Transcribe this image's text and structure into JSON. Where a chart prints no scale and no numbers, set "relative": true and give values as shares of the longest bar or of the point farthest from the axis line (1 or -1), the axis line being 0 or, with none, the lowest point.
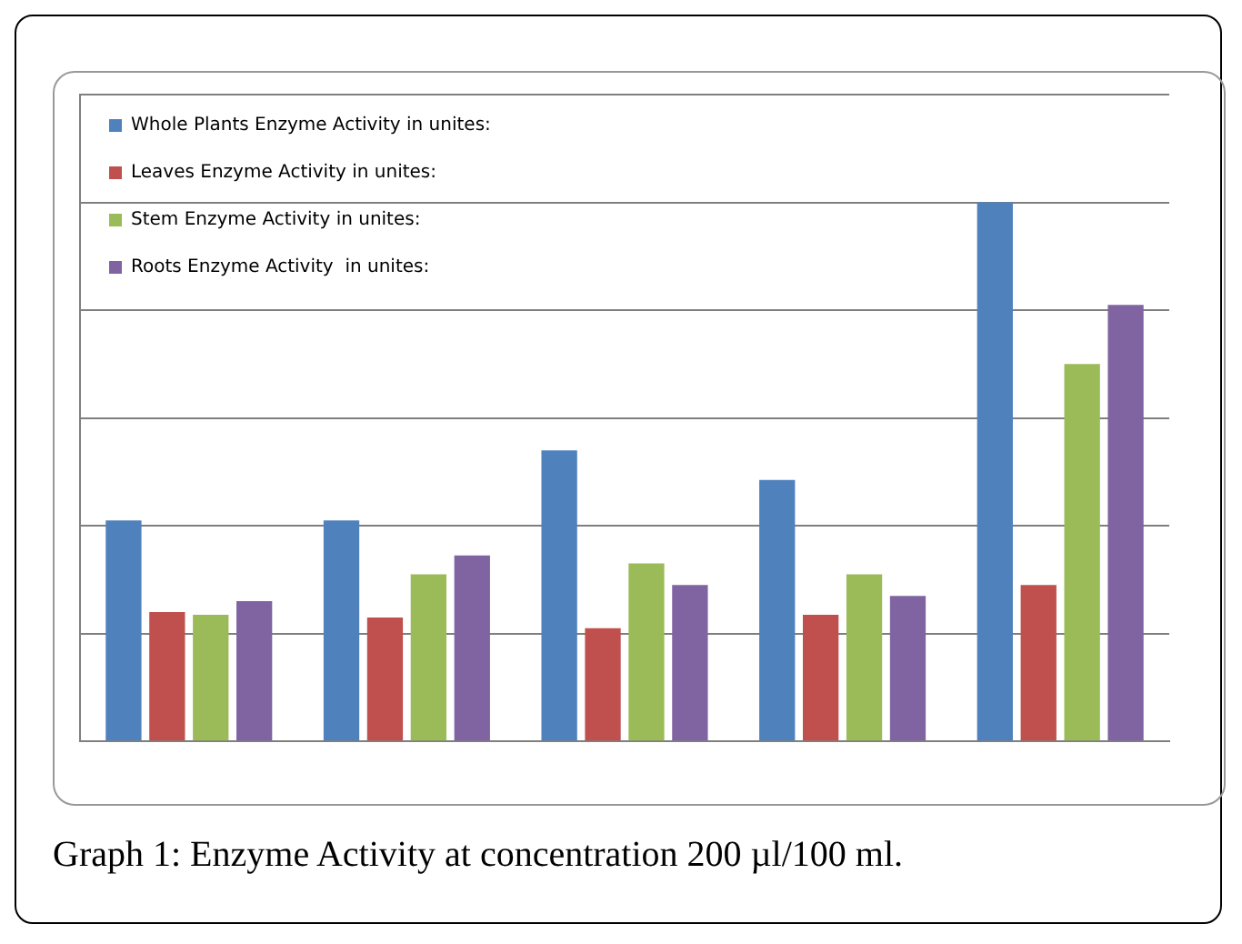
{
  "chart_data": {
    "type": "bar",
    "title": "Graph 1: Enzyme Activity at concentration 200 µl/100 ml.",
    "categories": [
      null,
      null,
      null,
      null,
      null
    ],
    "relative": true,
    "grid": "y",
    "legend": "top left",
    "series": [
      {
        "name": "Whole Plants Enzyme Activity in unites:",
        "color": "#4f81bd",
        "values": [
          0.41,
          0.41,
          0.54,
          0.485,
          1
        ]
      },
      {
        "name": "Leaves Enzyme Activity in unites:",
        "color": "#c0504d",
        "values": [
          0.24,
          0.23,
          0.21,
          0.235,
          0.29
        ]
      },
      {
        "name": "Stem Enzyme Activity in unites:",
        "color": "#9bbb59",
        "values": [
          0.235,
          0.31,
          0.33,
          0.31,
          0.7
        ]
      },
      {
        "name": "Roots Enzyme Activity  in unites:",
        "color": "#8064a2",
        "values": [
          0.26,
          0.345,
          0.29,
          0.27,
          0.81
        ]
      }
    ]
  }
}
